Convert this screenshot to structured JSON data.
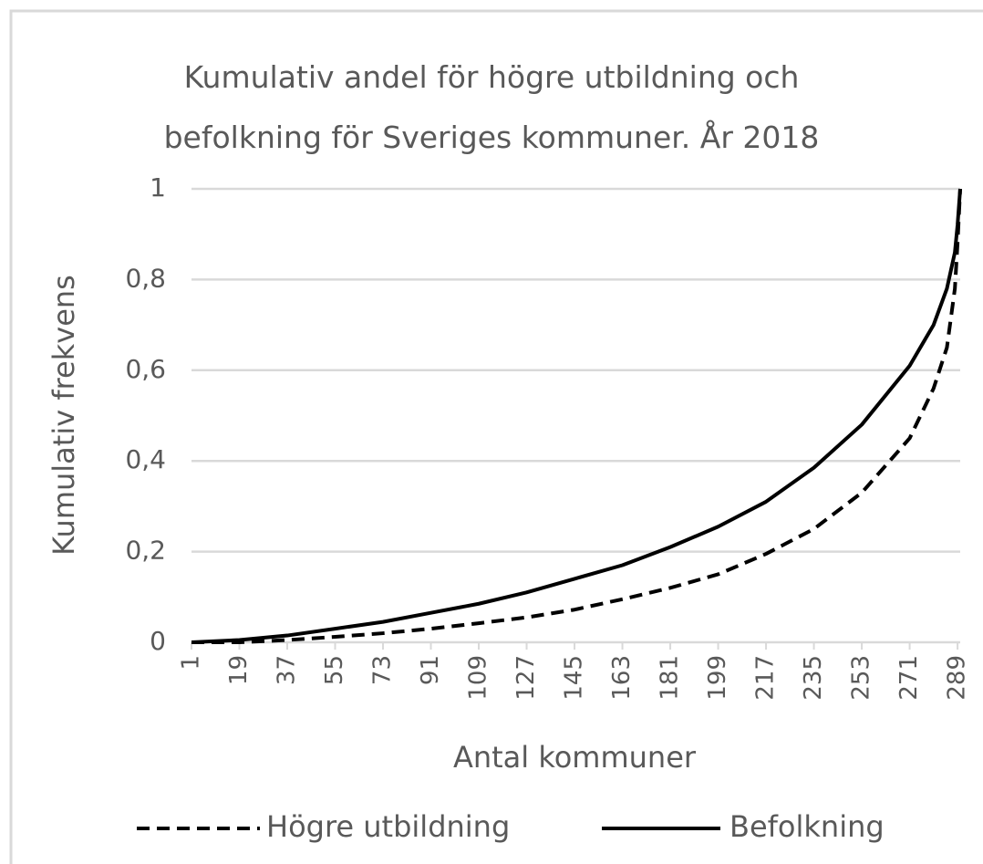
{
  "chart_data": {
    "type": "line",
    "title": "Kumulativ andel för högre utbildning och befolkning för Sveriges kommuner. År 2018",
    "xlabel": "Antal kommuner",
    "ylabel": "Kumulativ frekvens",
    "x": [
      1,
      19,
      37,
      55,
      73,
      91,
      109,
      127,
      145,
      163,
      181,
      199,
      217,
      235,
      253,
      271,
      280,
      285,
      288,
      289,
      290
    ],
    "series": [
      {
        "name": "Högre utbildning",
        "color": "#000000",
        "dash": "dashed",
        "values": [
          0,
          0,
          0.005,
          0.012,
          0.02,
          0.03,
          0.042,
          0.055,
          0.072,
          0.095,
          0.12,
          0.15,
          0.195,
          0.25,
          0.33,
          0.45,
          0.56,
          0.65,
          0.78,
          0.88,
          1.0
        ]
      },
      {
        "name": "Befolkning",
        "color": "#000000",
        "dash": "solid",
        "values": [
          0,
          0.005,
          0.015,
          0.03,
          0.045,
          0.065,
          0.085,
          0.11,
          0.14,
          0.17,
          0.21,
          0.255,
          0.31,
          0.385,
          0.48,
          0.61,
          0.7,
          0.78,
          0.86,
          0.92,
          1.0
        ]
      }
    ],
    "xlim": [
      1,
      290
    ],
    "xticks": [
      1,
      19,
      37,
      55,
      73,
      91,
      109,
      127,
      145,
      163,
      181,
      199,
      217,
      235,
      253,
      271,
      289
    ],
    "ylim": [
      0,
      1
    ],
    "yticks": [
      0,
      {
        "value": 0.2,
        "label": "0,2"
      },
      {
        "value": 0.4,
        "label": "0,4"
      },
      {
        "value": 0.6,
        "label": "0,6"
      },
      {
        "value": 0.8,
        "label": "0,8"
      },
      1
    ],
    "grid": true,
    "legend": "bottom"
  }
}
